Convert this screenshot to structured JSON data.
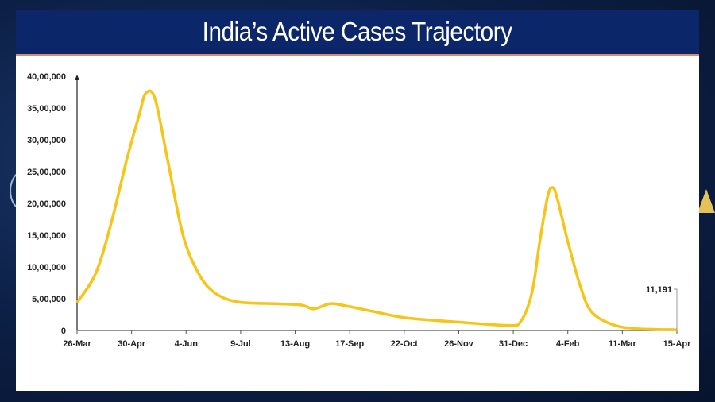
{
  "chart_data": {
    "type": "line",
    "title": "India’s Active Cases Trajectory",
    "xlabel": "",
    "ylabel": "",
    "x_tick_labels": [
      "26-Mar",
      "30-Apr",
      "4-Jun",
      "9-Jul",
      "13-Aug",
      "17-Sep",
      "22-Oct",
      "26-Nov",
      "31-Dec",
      "4-Feb",
      "11-Mar",
      "15-Apr"
    ],
    "x_unit": "days since 26-Mar",
    "xlim": [
      0,
      385
    ],
    "y_tick_labels": [
      "0",
      "5,00,000",
      "10,00,000",
      "15,00,000",
      "20,00,000",
      "25,00,000",
      "30,00,000",
      "35,00,000",
      "40,00,000"
    ],
    "ylim": [
      0,
      4000000
    ],
    "series": [
      {
        "name": "Active Cases",
        "color": "#f5c518",
        "x": [
          0,
          12,
          22,
          32,
          40,
          44,
          50,
          58,
          68,
          78,
          88,
          103,
          129,
          144,
          152,
          162,
          170,
          190,
          211,
          246,
          277,
          285,
          292,
          297,
          302,
          305,
          308,
          315,
          323,
          330,
          343,
          358,
          385
        ],
        "values": [
          440000,
          900000,
          1700000,
          2700000,
          3400000,
          3730000,
          3650000,
          2700000,
          1500000,
          900000,
          600000,
          450000,
          420000,
          400000,
          340000,
          420000,
          400000,
          300000,
          200000,
          130000,
          80000,
          150000,
          600000,
          1400000,
          2100000,
          2250000,
          2100000,
          1400000,
          700000,
          300000,
          100000,
          30000,
          11191
        ]
      }
    ],
    "annotations": [
      {
        "text": "11,191",
        "x": 385,
        "y": 11191
      }
    ],
    "grid": false,
    "legend": "none"
  },
  "colors": {
    "header": "#0c2769",
    "line": "#f5c518"
  }
}
